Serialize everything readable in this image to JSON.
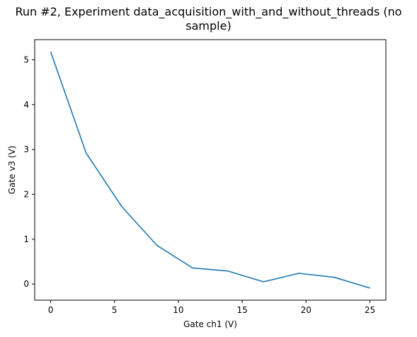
{
  "chart_data": {
    "type": "line",
    "title_line1": "Run #2, Experiment data_acquisition_with_and_without_threads (no",
    "title_line2": "sample)",
    "xlabel": "Gate ch1 (V)",
    "ylabel": "Gate v3 (V)",
    "xlim": [
      -1.25,
      26.25
    ],
    "ylim": [
      -0.36,
      5.45
    ],
    "xticks": [
      0,
      5,
      10,
      15,
      20,
      25
    ],
    "yticks": [
      0,
      1,
      2,
      3,
      4,
      5
    ],
    "grid": false,
    "line_color": "#1f77b4",
    "series": [
      {
        "x": [
          0,
          2.78,
          5.56,
          8.33,
          11.11,
          13.89,
          16.67,
          19.44,
          22.22,
          25
        ],
        "y": [
          5.18,
          2.92,
          1.73,
          0.86,
          0.36,
          0.29,
          0.05,
          0.24,
          0.15,
          -0.09
        ]
      }
    ]
  }
}
